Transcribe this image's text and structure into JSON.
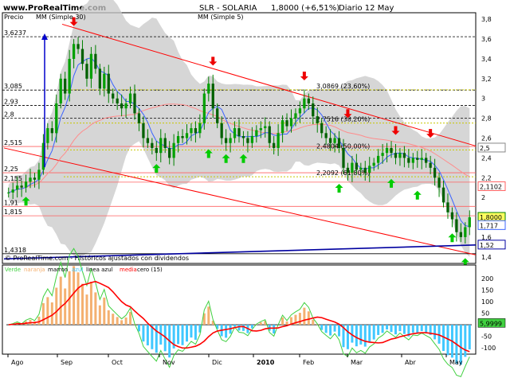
{
  "header": {
    "site": "www.ProRealTime.com",
    "title": "SLR - SOLARIA",
    "quote": "1,8000 (+6,51%)",
    "period": "Diario 12 May"
  },
  "legend": {
    "precio": "Precio",
    "mm30": "MM (Simple 30)",
    "mm5": "MM (Simple 5)"
  },
  "footnote": "© ProRealTime.com - Históricos ajustados con dividendos",
  "indicator_legend": {
    "verde": "Verde",
    "naranja": "naranja",
    "marron": "marron",
    "azul": "azul",
    "lineaazul": "linea azul",
    "media": "media",
    "cero": "cero (15)"
  },
  "x_labels": [
    "Ago",
    "Sep",
    "Oct",
    "Nov",
    "Dic",
    "2010",
    "Feb",
    "Mar",
    "Abr",
    "May"
  ],
  "price_axis": [
    "3,8",
    "3,6",
    "3,4",
    "3,2",
    "3",
    "2,8",
    "2,6",
    "2,4",
    "2,2",
    "2",
    "1,8",
    "1,6",
    "1,4"
  ],
  "indicator_axis": [
    "200",
    "150",
    "100",
    "50",
    "0",
    "-50",
    "-100"
  ],
  "left_levels": [
    "3,6237",
    "3,085",
    "2,93",
    "2,8",
    "2,515",
    "2,25",
    "2,155",
    "1,91",
    "1,815",
    "1,4318"
  ],
  "fib_labels": [
    "3,0869 (23,60%)",
    "2,7516 (38,20%)",
    "2,4804 (50,00%)",
    "2,2092 (61,80%)"
  ],
  "right_badges": {
    "mm30": "2,1102",
    "close": "1,8000",
    "mm5": "1,717",
    "blue_line": "1,52",
    "upper_trend": "2,5",
    "ind_value": "5,9999"
  },
  "colors": {
    "candle": "#008000",
    "mm30": "#ff8c8c",
    "mm5": "#3c64ff",
    "band": "#c8c8c8",
    "channel": "#ff0000",
    "support": "#0000a0",
    "fib": "#c8c800",
    "up_arrow": "#00cc00",
    "down_arrow": "#ee0000",
    "ind_green": "#40d040",
    "ind_orange": "#f4b070",
    "ind_cyan": "#40c8ff",
    "ind_red": "#ff0000"
  },
  "chart_data": {
    "type": "candlestick",
    "title": "SLR - SOLARIA",
    "ylim": [
      1.35,
      3.85
    ],
    "closes": [
      2.05,
      2.08,
      2.12,
      2.1,
      2.16,
      2.2,
      2.18,
      2.28,
      2.55,
      2.7,
      2.65,
      2.95,
      3.2,
      3.05,
      3.4,
      3.55,
      3.5,
      3.35,
      3.2,
      3.45,
      3.3,
      3.1,
      3.25,
      3.05,
      3.0,
      2.95,
      2.9,
      2.95,
      3.05,
      2.85,
      2.75,
      2.6,
      2.55,
      2.5,
      2.45,
      2.6,
      2.5,
      2.4,
      2.55,
      2.62,
      2.6,
      2.65,
      2.7,
      2.65,
      2.75,
      3.05,
      3.15,
      2.9,
      2.75,
      2.6,
      2.55,
      2.6,
      2.7,
      2.62,
      2.6,
      2.55,
      2.62,
      2.68,
      2.7,
      2.72,
      2.55,
      2.5,
      2.65,
      2.78,
      2.72,
      2.8,
      2.85,
      2.9,
      3.0,
      2.95,
      2.82,
      2.75,
      2.65,
      2.6,
      2.55,
      2.6,
      2.5,
      2.3,
      2.25,
      2.35,
      2.28,
      2.3,
      2.25,
      2.32,
      2.35,
      2.42,
      2.45,
      2.5,
      2.45,
      2.4,
      2.45,
      2.4,
      2.35,
      2.4,
      2.38,
      2.4,
      2.35,
      2.3,
      2.2,
      2.1,
      1.95,
      1.85,
      1.78,
      1.65,
      1.6,
      1.7,
      1.8
    ],
    "fib_levels": [
      3.0869,
      2.7516,
      2.4804,
      2.2092
    ],
    "horizontal_levels": [
      3.6237,
      3.085,
      2.93,
      2.8,
      2.515,
      2.25,
      2.155,
      1.91,
      1.815,
      1.4318
    ]
  }
}
